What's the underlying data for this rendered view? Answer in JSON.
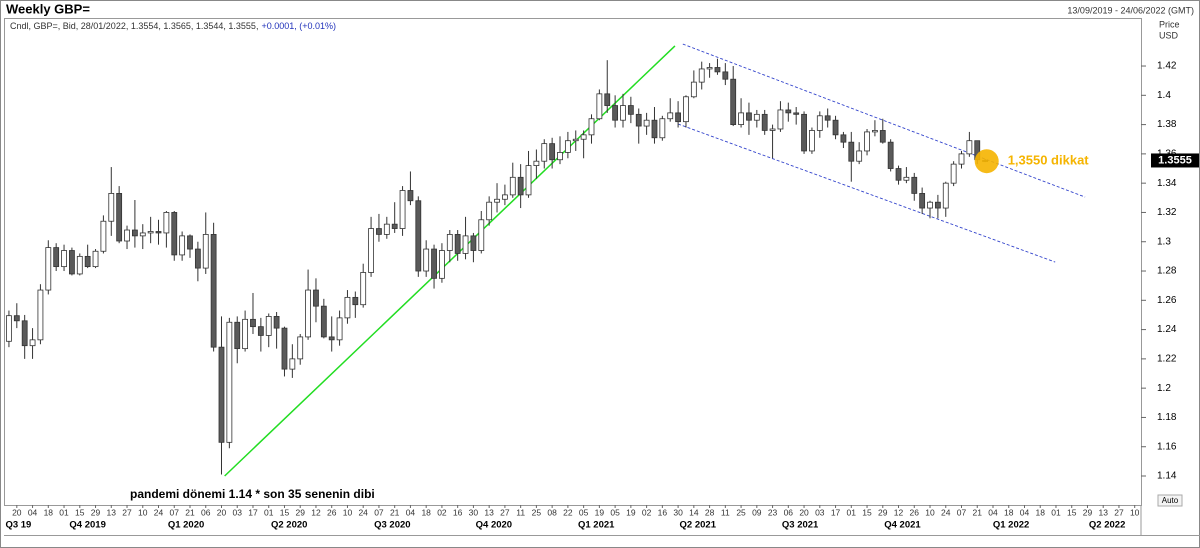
{
  "chart_data": {
    "type": "candlestick",
    "title": "Weekly GBP=",
    "date_range": "13/09/2019 - 24/06/2022 (GMT)",
    "info": "Cndl, GBP=, Bid, 28/01/2022, 1.3554, 1.3565, 1.3544, 1.3555,",
    "change": "+0.0001, (+0.01%)",
    "axis_label": [
      "Price",
      "USD"
    ],
    "scale_mode": "Auto",
    "up_color": "#ffffff",
    "down_color": "#5a5a5a",
    "grid": false,
    "ylim": [
      1.1202,
      1.4528
    ],
    "yticks": [
      1.14,
      1.16,
      1.18,
      1.2,
      1.22,
      1.24,
      1.26,
      1.28,
      1.3,
      1.32,
      1.34,
      1.36,
      1.38,
      1.4,
      1.42
    ],
    "last_price": 1.3555,
    "xlim": [
      -0.5,
      143.8
    ],
    "xticks": [
      {
        "value": 1,
        "label": "20"
      },
      {
        "value": 3,
        "label": "04"
      },
      {
        "value": 5,
        "label": "18"
      },
      {
        "value": 7,
        "label": "01"
      },
      {
        "value": 9,
        "label": "15"
      },
      {
        "value": 11,
        "label": "29"
      },
      {
        "value": 13,
        "label": "13"
      },
      {
        "value": 15,
        "label": "27"
      },
      {
        "value": 17,
        "label": "10"
      },
      {
        "value": 19,
        "label": "24"
      },
      {
        "value": 21,
        "label": "07"
      },
      {
        "value": 23,
        "label": "21"
      },
      {
        "value": 25,
        "label": "06"
      },
      {
        "value": 27,
        "label": "20"
      },
      {
        "value": 29,
        "label": "03"
      },
      {
        "value": 31,
        "label": "17"
      },
      {
        "value": 33,
        "label": "01"
      },
      {
        "value": 35,
        "label": "15"
      },
      {
        "value": 37,
        "label": "29"
      },
      {
        "value": 39,
        "label": "12"
      },
      {
        "value": 41,
        "label": "26"
      },
      {
        "value": 43,
        "label": "10"
      },
      {
        "value": 45,
        "label": "24"
      },
      {
        "value": 47,
        "label": "07"
      },
      {
        "value": 49,
        "label": "21"
      },
      {
        "value": 51,
        "label": "04"
      },
      {
        "value": 53,
        "label": "18"
      },
      {
        "value": 55,
        "label": "02"
      },
      {
        "value": 57,
        "label": "16"
      },
      {
        "value": 59,
        "label": "30"
      },
      {
        "value": 61,
        "label": "13"
      },
      {
        "value": 63,
        "label": "27"
      },
      {
        "value": 65,
        "label": "11"
      },
      {
        "value": 67,
        "label": "25"
      },
      {
        "value": 69,
        "label": "08"
      },
      {
        "value": 71,
        "label": "22"
      },
      {
        "value": 73,
        "label": "05"
      },
      {
        "value": 75,
        "label": "19"
      },
      {
        "value": 77,
        "label": "05"
      },
      {
        "value": 79,
        "label": "19"
      },
      {
        "value": 81,
        "label": "02"
      },
      {
        "value": 83,
        "label": "16"
      },
      {
        "value": 85,
        "label": "30"
      },
      {
        "value": 87,
        "label": "14"
      },
      {
        "value": 89,
        "label": "28"
      },
      {
        "value": 91,
        "label": "11"
      },
      {
        "value": 93,
        "label": "25"
      },
      {
        "value": 95,
        "label": "09"
      },
      {
        "value": 97,
        "label": "23"
      },
      {
        "value": 99,
        "label": "06"
      },
      {
        "value": 101,
        "label": "20"
      },
      {
        "value": 103,
        "label": "03"
      },
      {
        "value": 105,
        "label": "17"
      },
      {
        "value": 107,
        "label": "01"
      },
      {
        "value": 109,
        "label": "15"
      },
      {
        "value": 111,
        "label": "29"
      },
      {
        "value": 113,
        "label": "12"
      },
      {
        "value": 115,
        "label": "26"
      },
      {
        "value": 117,
        "label": "10"
      },
      {
        "value": 119,
        "label": "24"
      },
      {
        "value": 121,
        "label": "07"
      },
      {
        "value": 123,
        "label": "21"
      },
      {
        "value": 125,
        "label": "04"
      },
      {
        "value": 127,
        "label": "18"
      },
      {
        "value": 129,
        "label": "04"
      },
      {
        "value": 131,
        "label": "18"
      },
      {
        "value": 133,
        "label": "01"
      },
      {
        "value": 135,
        "label": "15"
      },
      {
        "value": 137,
        "label": "29"
      },
      {
        "value": 139,
        "label": "13"
      },
      {
        "value": 141,
        "label": "27"
      },
      {
        "value": 143,
        "label": "10"
      }
    ],
    "quarters": [
      {
        "value": 1.2,
        "label": "Q3 19"
      },
      {
        "value": 10,
        "label": "Q4 2019"
      },
      {
        "value": 22.5,
        "label": "Q1 2020"
      },
      {
        "value": 35.6,
        "label": "Q2 2020"
      },
      {
        "value": 48.7,
        "label": "Q3 2020"
      },
      {
        "value": 61.6,
        "label": "Q4 2020"
      },
      {
        "value": 74.6,
        "label": "Q1 2021"
      },
      {
        "value": 87.5,
        "label": "Q2 2021"
      },
      {
        "value": 100.5,
        "label": "Q3 2021"
      },
      {
        "value": 113.5,
        "label": "Q4 2021"
      },
      {
        "value": 127.3,
        "label": "Q1 2022"
      },
      {
        "value": 139.5,
        "label": "Q2 2022"
      }
    ],
    "candles": [
      [
        1.232,
        1.253,
        1.228,
        1.2495
      ],
      [
        1.2495,
        1.258,
        1.241,
        1.246
      ],
      [
        1.246,
        1.25,
        1.22,
        1.229
      ],
      [
        1.229,
        1.241,
        1.22,
        1.233
      ],
      [
        1.233,
        1.271,
        1.23,
        1.267
      ],
      [
        1.267,
        1.301,
        1.264,
        1.296
      ],
      [
        1.296,
        1.299,
        1.28,
        1.283
      ],
      [
        1.283,
        1.298,
        1.28,
        1.294
      ],
      [
        1.294,
        1.296,
        1.277,
        1.278
      ],
      [
        1.278,
        1.292,
        1.277,
        1.29
      ],
      [
        1.29,
        1.298,
        1.282,
        1.283
      ],
      [
        1.283,
        1.295,
        1.282,
        1.2935
      ],
      [
        1.2935,
        1.318,
        1.292,
        1.314
      ],
      [
        1.314,
        1.351,
        1.304,
        1.333
      ],
      [
        1.333,
        1.338,
        1.299,
        1.3005
      ],
      [
        1.3005,
        1.311,
        1.295,
        1.308
      ],
      [
        1.308,
        1.3285,
        1.296,
        1.304
      ],
      [
        1.304,
        1.312,
        1.295,
        1.306
      ],
      [
        1.306,
        1.317,
        1.299,
        1.307
      ],
      [
        1.307,
        1.315,
        1.298,
        1.306
      ],
      [
        1.306,
        1.321,
        1.296,
        1.32
      ],
      [
        1.32,
        1.321,
        1.287,
        1.291
      ],
      [
        1.291,
        1.307,
        1.287,
        1.304
      ],
      [
        1.304,
        1.305,
        1.289,
        1.295
      ],
      [
        1.295,
        1.3,
        1.273,
        1.282
      ],
      [
        1.282,
        1.32,
        1.278,
        1.305
      ],
      [
        1.305,
        1.313,
        1.225,
        1.228
      ],
      [
        1.228,
        1.249,
        1.141,
        1.163
      ],
      [
        1.163,
        1.248,
        1.159,
        1.245
      ],
      [
        1.245,
        1.249,
        1.217,
        1.227
      ],
      [
        1.227,
        1.253,
        1.225,
        1.247
      ],
      [
        1.247,
        1.265,
        1.237,
        1.242
      ],
      [
        1.242,
        1.248,
        1.225,
        1.236
      ],
      [
        1.236,
        1.251,
        1.228,
        1.249
      ],
      [
        1.249,
        1.252,
        1.227,
        1.241
      ],
      [
        1.241,
        1.242,
        1.208,
        1.213
      ],
      [
        1.213,
        1.23,
        1.207,
        1.22
      ],
      [
        1.22,
        1.237,
        1.216,
        1.235
      ],
      [
        1.235,
        1.281,
        1.233,
        1.267
      ],
      [
        1.267,
        1.275,
        1.245,
        1.256
      ],
      [
        1.256,
        1.261,
        1.234,
        1.235
      ],
      [
        1.235,
        1.249,
        1.225,
        1.233
      ],
      [
        1.233,
        1.253,
        1.229,
        1.248
      ],
      [
        1.248,
        1.267,
        1.244,
        1.262
      ],
      [
        1.262,
        1.266,
        1.248,
        1.257
      ],
      [
        1.257,
        1.285,
        1.255,
        1.279
      ],
      [
        1.279,
        1.317,
        1.276,
        1.309
      ],
      [
        1.309,
        1.319,
        1.3,
        1.305
      ],
      [
        1.305,
        1.317,
        1.302,
        1.312
      ],
      [
        1.312,
        1.327,
        1.306,
        1.309
      ],
      [
        1.309,
        1.338,
        1.304,
        1.335
      ],
      [
        1.335,
        1.348,
        1.325,
        1.328
      ],
      [
        1.328,
        1.331,
        1.276,
        1.28
      ],
      [
        1.28,
        1.301,
        1.276,
        1.295
      ],
      [
        1.295,
        1.298,
        1.268,
        1.275
      ],
      [
        1.275,
        1.299,
        1.272,
        1.294
      ],
      [
        1.294,
        1.308,
        1.286,
        1.305
      ],
      [
        1.305,
        1.308,
        1.287,
        1.292
      ],
      [
        1.292,
        1.317,
        1.288,
        1.304
      ],
      [
        1.304,
        1.306,
        1.286,
        1.294
      ],
      [
        1.294,
        1.321,
        1.292,
        1.315
      ],
      [
        1.315,
        1.331,
        1.311,
        1.327
      ],
      [
        1.327,
        1.34,
        1.32,
        1.329
      ],
      [
        1.329,
        1.339,
        1.325,
        1.332
      ],
      [
        1.332,
        1.354,
        1.33,
        1.344
      ],
      [
        1.344,
        1.353,
        1.323,
        1.332
      ],
      [
        1.332,
        1.362,
        1.33,
        1.352
      ],
      [
        1.352,
        1.363,
        1.343,
        1.355
      ],
      [
        1.355,
        1.37,
        1.35,
        1.367
      ],
      [
        1.367,
        1.371,
        1.35,
        1.356
      ],
      [
        1.356,
        1.372,
        1.353,
        1.361
      ],
      [
        1.361,
        1.375,
        1.357,
        1.369
      ],
      [
        1.369,
        1.376,
        1.362,
        1.37
      ],
      [
        1.37,
        1.376,
        1.357,
        1.373
      ],
      [
        1.373,
        1.387,
        1.367,
        1.384
      ],
      [
        1.384,
        1.404,
        1.383,
        1.401
      ],
      [
        1.401,
        1.424,
        1.388,
        1.393
      ],
      [
        1.393,
        1.4,
        1.378,
        1.383
      ],
      [
        1.383,
        1.401,
        1.378,
        1.393
      ],
      [
        1.393,
        1.399,
        1.381,
        1.387
      ],
      [
        1.387,
        1.391,
        1.367,
        1.379
      ],
      [
        1.379,
        1.388,
        1.373,
        1.383
      ],
      [
        1.383,
        1.392,
        1.367,
        1.371
      ],
      [
        1.371,
        1.386,
        1.369,
        1.384
      ],
      [
        1.384,
        1.398,
        1.382,
        1.388
      ],
      [
        1.388,
        1.396,
        1.378,
        1.382
      ],
      [
        1.382,
        1.4,
        1.378,
        1.399
      ],
      [
        1.399,
        1.417,
        1.398,
        1.409
      ],
      [
        1.409,
        1.423,
        1.404,
        1.418
      ],
      [
        1.418,
        1.422,
        1.412,
        1.419
      ],
      [
        1.419,
        1.425,
        1.414,
        1.416
      ],
      [
        1.416,
        1.422,
        1.407,
        1.411
      ],
      [
        1.411,
        1.42,
        1.379,
        1.38
      ],
      [
        1.38,
        1.398,
        1.378,
        1.388
      ],
      [
        1.388,
        1.395,
        1.373,
        1.383
      ],
      [
        1.383,
        1.39,
        1.378,
        1.387
      ],
      [
        1.387,
        1.39,
        1.373,
        1.376
      ],
      [
        1.376,
        1.38,
        1.357,
        1.377
      ],
      [
        1.377,
        1.396,
        1.375,
        1.39
      ],
      [
        1.39,
        1.395,
        1.382,
        1.388
      ],
      [
        1.388,
        1.392,
        1.38,
        1.387
      ],
      [
        1.387,
        1.389,
        1.36,
        1.362
      ],
      [
        1.362,
        1.378,
        1.36,
        1.376
      ],
      [
        1.376,
        1.389,
        1.371,
        1.386
      ],
      [
        1.386,
        1.391,
        1.378,
        1.383
      ],
      [
        1.383,
        1.386,
        1.37,
        1.373
      ],
      [
        1.373,
        1.375,
        1.364,
        1.368
      ],
      [
        1.368,
        1.375,
        1.341,
        1.355
      ],
      [
        1.355,
        1.368,
        1.353,
        1.362
      ],
      [
        1.362,
        1.377,
        1.359,
        1.375
      ],
      [
        1.375,
        1.383,
        1.372,
        1.376
      ],
      [
        1.376,
        1.384,
        1.367,
        1.368
      ],
      [
        1.368,
        1.37,
        1.348,
        1.35
      ],
      [
        1.35,
        1.352,
        1.339,
        1.342
      ],
      [
        1.342,
        1.351,
        1.34,
        1.344
      ],
      [
        1.344,
        1.347,
        1.328,
        1.333
      ],
      [
        1.333,
        1.337,
        1.319,
        1.323
      ],
      [
        1.323,
        1.328,
        1.316,
        1.327
      ],
      [
        1.327,
        1.332,
        1.316,
        1.323
      ],
      [
        1.323,
        1.341,
        1.317,
        1.34
      ],
      [
        1.34,
        1.355,
        1.338,
        1.353
      ],
      [
        1.353,
        1.362,
        1.35,
        1.36
      ],
      [
        1.36,
        1.375,
        1.358,
        1.369
      ],
      [
        1.369,
        1.369,
        1.353,
        1.356
      ],
      [
        1.3554,
        1.3565,
        1.3544,
        1.3555
      ]
    ],
    "trendlines": [
      {
        "color": "#22dd22",
        "style": "solid",
        "points": [
          [
            27.4,
            1.14
          ],
          [
            84.6,
            1.4337
          ]
        ]
      },
      {
        "color": "#3344cc",
        "style": "dashed",
        "points": [
          [
            85.6,
            1.435
          ],
          [
            136.7,
            1.3305
          ]
        ]
      },
      {
        "color": "#3344cc",
        "style": "dashed",
        "points": [
          [
            85,
            1.3804
          ],
          [
            132.9,
            1.2861
          ]
        ]
      }
    ],
    "highlight": {
      "x": 124.2,
      "value": 1.355,
      "color": "#f5b400",
      "label": "1,3550 dikkat"
    },
    "annotation": "pandemi dönemi 1.14 * son 35 senenin dibi"
  }
}
